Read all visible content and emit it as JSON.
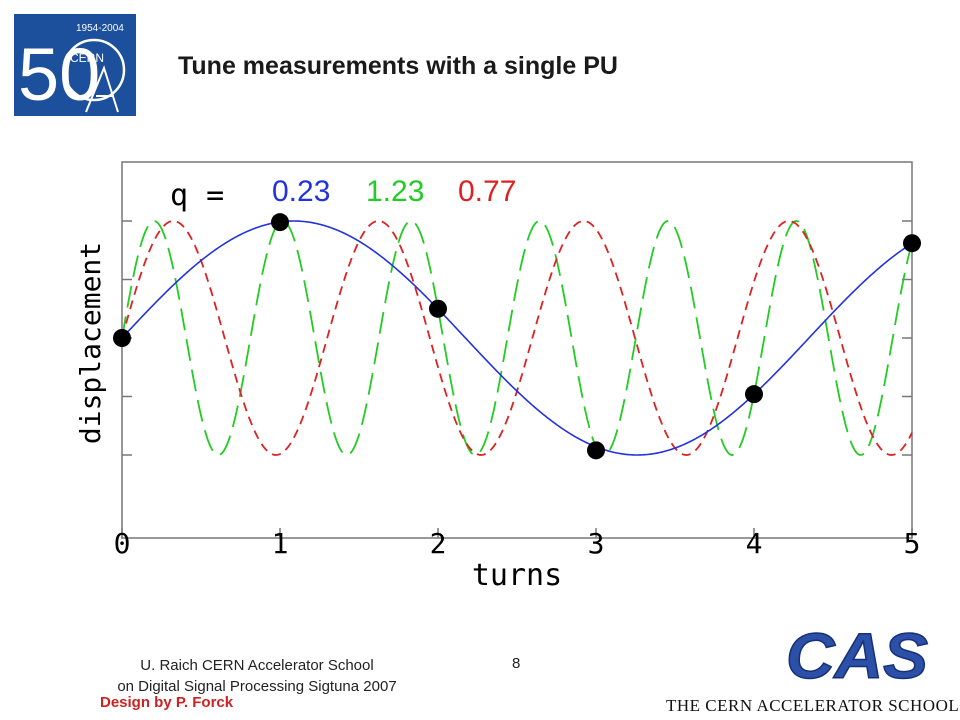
{
  "slide": {
    "title": "Tune measurements with a single PU",
    "page_number": "8"
  },
  "logo": {
    "years": "1954-2004",
    "fifty": "50",
    "org": "CERN",
    "color": "#1c4f9c"
  },
  "footer": {
    "author_line1": "U. Raich  CERN Accelerator School",
    "author_line2": "on Digital Signal Processing  Sigtuna 2007",
    "design_credit": "Design by P. Forck"
  },
  "cas": {
    "wordmark": "CAS",
    "caption": "THE CERN ACCELERATOR SCHOOL",
    "color": "#2c4fa8"
  },
  "chart_data": {
    "type": "line",
    "xlabel": "turns",
    "ylabel": "displacement",
    "xlim": [
      0,
      5
    ],
    "ylim": [
      -1.55,
      1.55
    ],
    "x_ticks": [
      "0",
      "1",
      "2",
      "3",
      "4",
      "5"
    ],
    "legend_prefix": "q  =",
    "series": [
      {
        "name": "0.23",
        "q": 0.23,
        "color": "#2233dd",
        "style": "solid"
      },
      {
        "name": "1.23",
        "q": 1.23,
        "color": "#22cc22",
        "style": "long-dash"
      },
      {
        "name": "0.77",
        "q": 0.77,
        "color": "#dd2222",
        "style": "short-dash"
      }
    ],
    "samples": {
      "x": [
        0,
        1,
        2,
        3,
        4,
        5
      ],
      "y": [
        0.0,
        0.99,
        0.25,
        -0.96,
        -0.48,
        0.81
      ],
      "color": "#000000"
    }
  }
}
